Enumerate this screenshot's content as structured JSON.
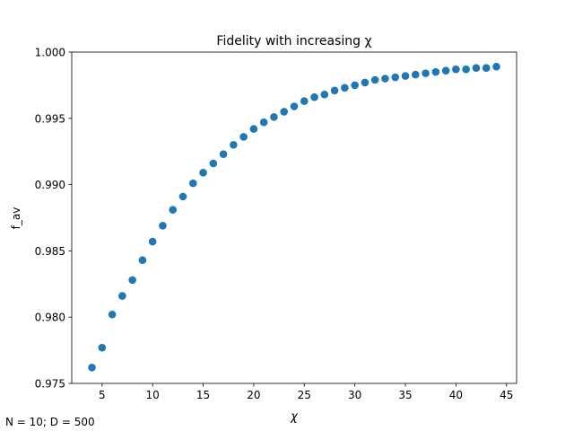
{
  "chart_data": {
    "type": "scatter",
    "title": "Fidelity with increasing χ",
    "xlabel": "χ",
    "ylabel": "f_av",
    "xlim": [
      2.0,
      46.0
    ],
    "ylim": [
      0.975,
      1.0
    ],
    "xticks": [
      5,
      10,
      15,
      20,
      25,
      30,
      35,
      40,
      45
    ],
    "yticks": [
      0.975,
      0.98,
      0.985,
      0.99,
      0.995,
      1.0
    ],
    "ytick_labels": [
      "0.975",
      "0.980",
      "0.985",
      "0.990",
      "0.995",
      "1.000"
    ],
    "grid": false,
    "marker_color": "#1f77b4",
    "x": [
      4,
      5,
      6,
      7,
      8,
      9,
      10,
      11,
      12,
      13,
      14,
      15,
      16,
      17,
      18,
      19,
      20,
      21,
      22,
      23,
      24,
      25,
      26,
      27,
      28,
      29,
      30,
      31,
      32,
      33,
      34,
      35,
      36,
      37,
      38,
      39,
      40,
      41,
      42,
      43,
      44
    ],
    "y": [
      0.9762,
      0.9777,
      0.9802,
      0.9816,
      0.9828,
      0.9843,
      0.9857,
      0.9869,
      0.9881,
      0.9891,
      0.9901,
      0.9909,
      0.9916,
      0.9923,
      0.993,
      0.9936,
      0.9942,
      0.9947,
      0.9951,
      0.9955,
      0.9959,
      0.9963,
      0.9966,
      0.9968,
      0.9971,
      0.9973,
      0.9975,
      0.9977,
      0.9979,
      0.998,
      0.9981,
      0.9982,
      0.9983,
      0.9984,
      0.9985,
      0.9986,
      0.9987,
      0.9987,
      0.9988,
      0.9988,
      0.9989
    ]
  },
  "footnote": "N = 10; D = 500"
}
